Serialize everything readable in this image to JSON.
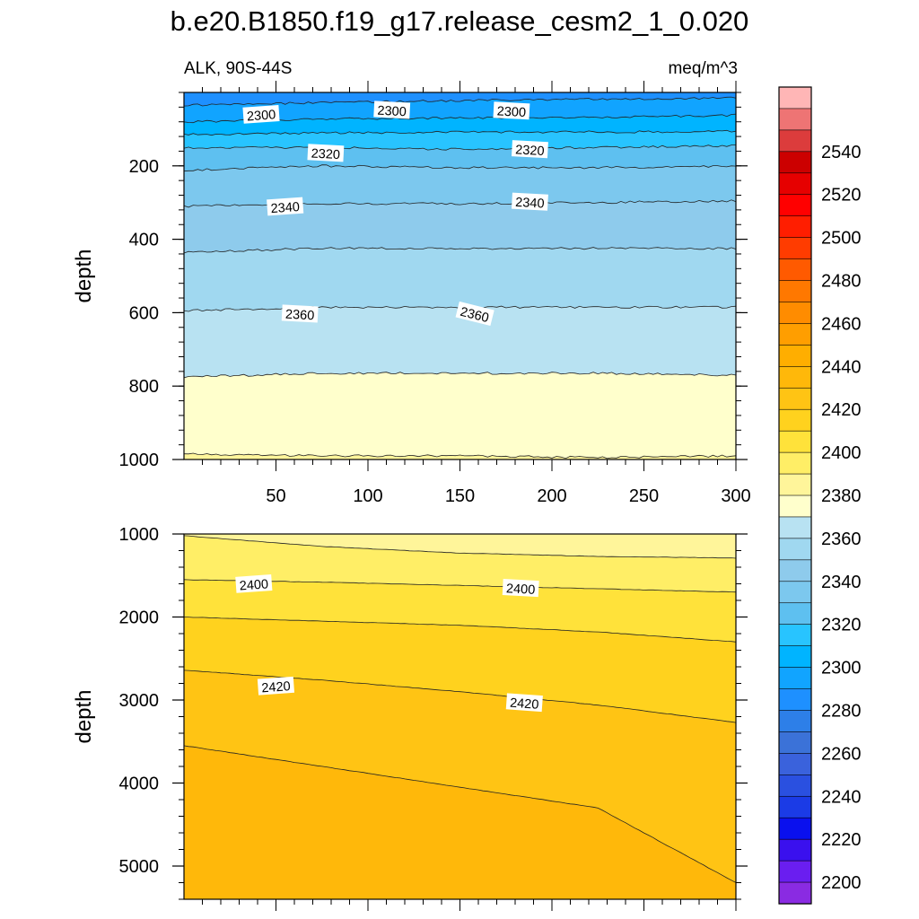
{
  "title": "b.e20.B1850.f19_g17.release_cesm2_1_0.020",
  "subtitle_left": "ALK, 90S-44S",
  "subtitle_right": "meq/m^3",
  "chart_data": [
    {
      "type": "contour",
      "panel": "upper",
      "ylabel": "depth",
      "xlim": [
        0,
        300
      ],
      "ylim": [
        1000,
        0
      ],
      "x_tick_labels": [
        "50",
        "100",
        "150",
        "200",
        "250",
        "300"
      ],
      "y_tick_labels": [
        "200",
        "400",
        "600",
        "800",
        "1000"
      ],
      "contours": [
        {
          "level": 2290,
          "depth": [
            35,
            28,
            22,
            18,
            15
          ]
        },
        {
          "level": 2300,
          "depth": [
            80,
            72,
            70,
            68,
            62
          ]
        },
        {
          "level": 2310,
          "depth": [
            115,
            110,
            108,
            108,
            106
          ]
        },
        {
          "level": 2320,
          "depth": [
            150,
            150,
            155,
            150,
            145
          ]
        },
        {
          "level": 2330,
          "depth": [
            212,
            200,
            205,
            205,
            200
          ]
        },
        {
          "level": 2340,
          "depth": [
            310,
            303,
            303,
            300,
            295
          ]
        },
        {
          "level": 2350,
          "depth": [
            435,
            425,
            425,
            425,
            425
          ]
        },
        {
          "level": 2360,
          "depth": [
            595,
            585,
            585,
            585,
            585
          ]
        },
        {
          "level": 2370,
          "depth": [
            775,
            765,
            765,
            765,
            770
          ]
        },
        {
          "level": 2380,
          "depth": [
            985,
            990,
            990,
            995,
            990
          ]
        }
      ],
      "contour_labels": [
        {
          "text": "2300",
          "x": 42,
          "depth": 62
        },
        {
          "text": "2300",
          "x": 113,
          "depth": 50
        },
        {
          "text": "2300",
          "x": 178,
          "depth": 52
        },
        {
          "text": "2320",
          "x": 77,
          "depth": 167
        },
        {
          "text": "2320",
          "x": 188,
          "depth": 157
        },
        {
          "text": "2340",
          "x": 55,
          "depth": 313
        },
        {
          "text": "2340",
          "x": 188,
          "depth": 300
        },
        {
          "text": "2360",
          "x": 63,
          "depth": 605
        },
        {
          "text": "2360",
          "x": 158,
          "depth": 605
        }
      ]
    },
    {
      "type": "contour",
      "panel": "lower",
      "ylabel": "depth",
      "xlim": [
        0,
        300
      ],
      "ylim": [
        5400,
        1000
      ],
      "y_tick_labels": [
        "1000",
        "2000",
        "3000",
        "4000",
        "5000"
      ],
      "contours": [
        {
          "level": 2390,
          "depth": [
            1020,
            1150,
            1230,
            1270,
            1290
          ]
        },
        {
          "level": 2400,
          "depth": [
            1550,
            1580,
            1620,
            1660,
            1700
          ]
        },
        {
          "level": 2410,
          "depth": [
            2000,
            2050,
            2100,
            2180,
            2300
          ]
        },
        {
          "level": 2420,
          "depth": [
            2640,
            2760,
            2900,
            3060,
            3270
          ]
        },
        {
          "level": 2430,
          "depth": [
            3550,
            3800,
            4050,
            4300,
            5200
          ]
        }
      ],
      "contour_labels": [
        {
          "text": "2400",
          "x": 38,
          "depth": 1610
        },
        {
          "text": "2400",
          "x": 183,
          "depth": 1660
        },
        {
          "text": "2420",
          "x": 50,
          "depth": 2840
        },
        {
          "text": "2420",
          "x": 185,
          "depth": 3040
        }
      ]
    }
  ],
  "colorbar": {
    "labels": [
      "2200",
      "2220",
      "2240",
      "2260",
      "2280",
      "2300",
      "2320",
      "2340",
      "2360",
      "2380",
      "2400",
      "2420",
      "2440",
      "2460",
      "2480",
      "2500",
      "2520",
      "2540"
    ],
    "colors": [
      "#8a2be2",
      "#6a1ef0",
      "#3a10ee",
      "#0a10ee",
      "#1b3be6",
      "#2a50e0",
      "#3a62dc",
      "#3b72d8",
      "#2d7fe8",
      "#1e90ff",
      "#11a4ff",
      "#00b4ff",
      "#28c4ff",
      "#5ec0f0",
      "#7cc8ee",
      "#8ecbec",
      "#a0d8f0",
      "#b8e2f2",
      "#ffffcc",
      "#fff59a",
      "#ffee66",
      "#ffe23a",
      "#ffd21e",
      "#ffc414",
      "#ffb80a",
      "#ffae00",
      "#ff9e00",
      "#ff8c00",
      "#ff7800",
      "#ff5a00",
      "#ff3c00",
      "#ff1e00",
      "#ff0000",
      "#e60000",
      "#cc0000",
      "#dc3c3c",
      "#ee7474",
      "#ffb6b6"
    ]
  }
}
